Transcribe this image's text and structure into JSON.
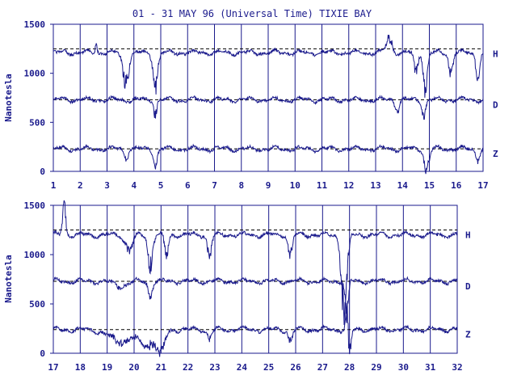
{
  "title": "01 - 31 MAY 96 (Universal Time) TIXIE BAY",
  "colors": {
    "ink": "#1a1a8c",
    "background": "#ffffff"
  },
  "chart_data": [
    {
      "type": "line",
      "panel": "top",
      "xlabel": "",
      "ylabel": "Nanotesla",
      "xlim": [
        1,
        17
      ],
      "ylim": [
        0,
        1500
      ],
      "x_ticks": [
        "1",
        "2",
        "3",
        "4",
        "5",
        "6",
        "7",
        "8",
        "9",
        "10",
        "11",
        "12",
        "13",
        "14",
        "15",
        "16",
        "17"
      ],
      "y_ticks": [
        "0",
        "500",
        "1000",
        "1500"
      ],
      "grid": "vertical lines at each day",
      "series": [
        {
          "name": "H",
          "baseline": 1250,
          "typical": 1210
        },
        {
          "name": "D",
          "baseline": 730,
          "typical": 730
        },
        {
          "name": "Z",
          "baseline": 230,
          "typical": 230
        }
      ]
    },
    {
      "type": "line",
      "panel": "bottom",
      "xlabel": "",
      "ylabel": "Nanotesla",
      "xlim": [
        17,
        32
      ],
      "ylim": [
        0,
        1500
      ],
      "x_ticks": [
        "17",
        "18",
        "19",
        "20",
        "21",
        "22",
        "23",
        "24",
        "25",
        "26",
        "27",
        "28",
        "29",
        "30",
        "31",
        "32"
      ],
      "y_ticks": [
        "0",
        "500",
        "1000",
        "1500"
      ],
      "grid": "vertical lines at each day",
      "series": [
        {
          "name": "H",
          "baseline": 1250,
          "typical": 1200
        },
        {
          "name": "D",
          "baseline": 730,
          "typical": 730
        },
        {
          "name": "Z",
          "baseline": 240,
          "typical": 240
        }
      ]
    }
  ]
}
